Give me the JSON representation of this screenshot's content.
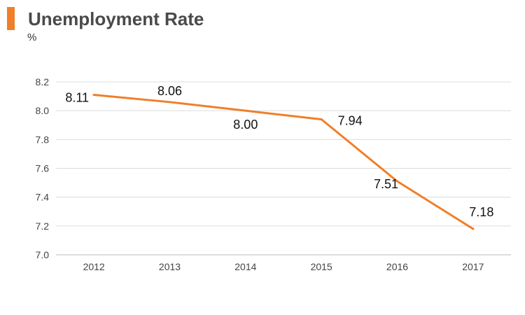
{
  "accent_color": "#F07F2A",
  "chart_data": {
    "type": "line",
    "title": "Unemployment Rate",
    "unit_label": "%",
    "categories": [
      "2012",
      "2013",
      "2014",
      "2015",
      "2016",
      "2017"
    ],
    "series": [
      {
        "values": [
          8.11,
          8.06,
          8.0,
          7.94,
          7.51,
          7.18
        ],
        "labels": [
          "8.11",
          "8.06",
          "8.00",
          "7.94",
          "7.51",
          "7.18"
        ],
        "color": "#F07F2A"
      }
    ],
    "yticks": [
      "7.0",
      "7.2",
      "7.4",
      "7.6",
      "7.8",
      "8.0",
      "8.2"
    ],
    "ylim": [
      7.0,
      8.2
    ],
    "grid": true,
    "legend": "none"
  }
}
